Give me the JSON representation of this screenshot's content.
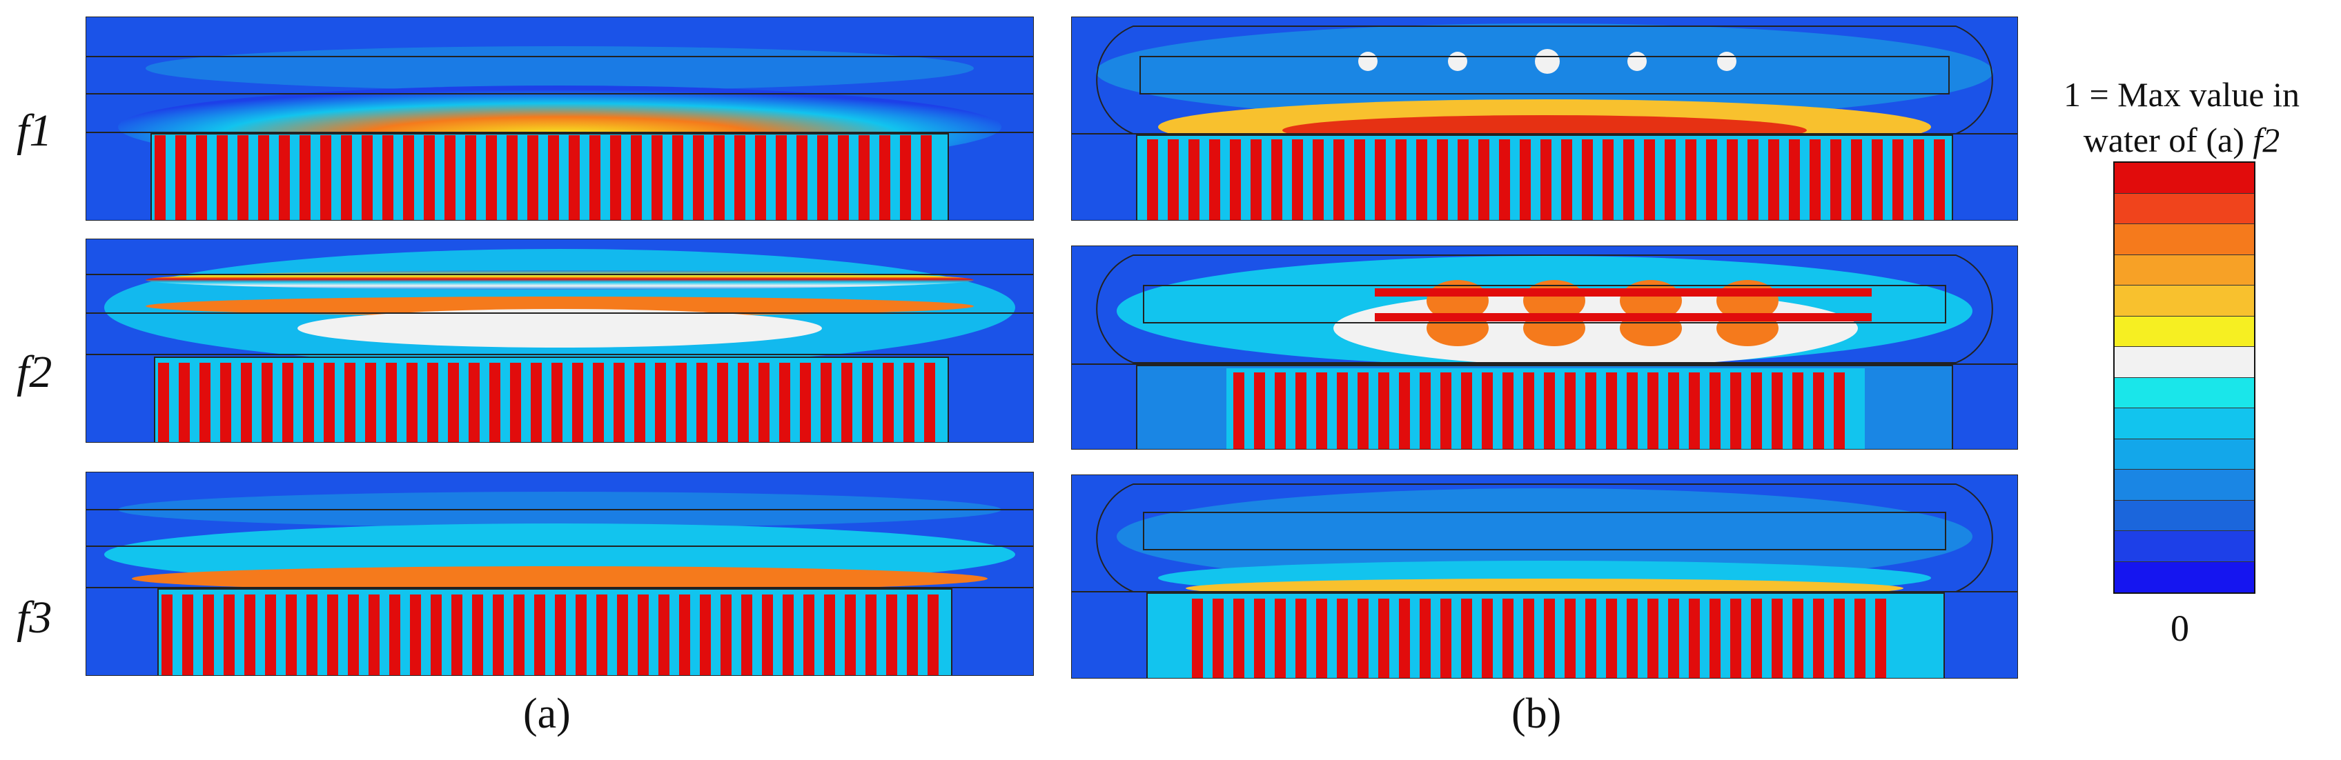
{
  "row_labels": [
    "f1",
    "f2",
    "f3"
  ],
  "captions": {
    "a": "(a)",
    "b": "(b)"
  },
  "legend": {
    "title_line1": "1 = Max value in",
    "title_line2_prefix": "water of (a) ",
    "title_line2_italic": "f2",
    "min_label": "0",
    "scale_colors": [
      "#e10c0c",
      "#f0441c",
      "#f57a1c",
      "#f7a126",
      "#f8c12e",
      "#f6ef22",
      "#f2f2f2",
      "#1ae6ea",
      "#12c4ee",
      "#13a7ea",
      "#1a86e4",
      "#1b66dc",
      "#1d40e8",
      "#1515f0"
    ]
  }
}
